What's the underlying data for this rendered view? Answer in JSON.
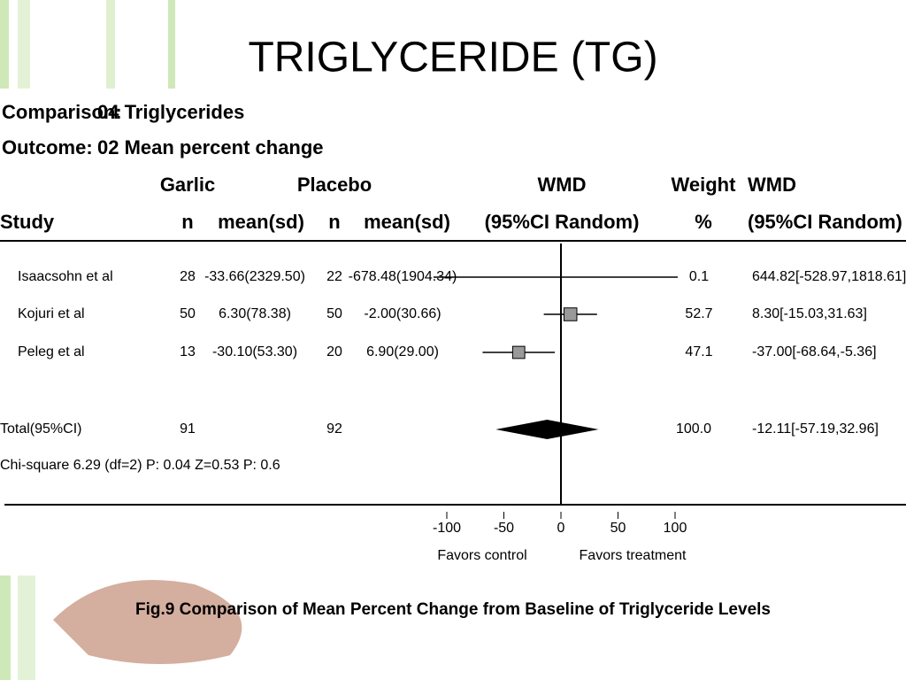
{
  "title": "TRIGLYCERIDE (TG)",
  "comparison": {
    "label": "Comparison:",
    "value": "04 Triglycerides"
  },
  "outcome": {
    "label": "Outcome:",
    "value": "02 Mean percent change"
  },
  "headers": {
    "top": [
      "Garlic",
      "Placebo",
      "WMD",
      "Weight",
      "WMD"
    ],
    "bottom": [
      "Study",
      "n",
      "mean(sd)",
      "n",
      "mean(sd)",
      "(95%CI Random)",
      "%",
      "(95%CI Random)"
    ]
  },
  "studies": [
    {
      "study": "Isaacsohn et al",
      "garlic_n": 28,
      "garlic_mean": "-33.66(2329.50)",
      "placebo_n": 22,
      "placebo_mean": "-678.48(1904.34)",
      "weight": 0.1,
      "wmd": 644.82,
      "ci": [
        -528.97,
        1818.61
      ],
      "wmd_label": "644.82[-528.97,1818.61]"
    },
    {
      "study": "Kojuri et al",
      "garlic_n": 50,
      "garlic_mean": "6.30(78.38)",
      "placebo_n": 50,
      "placebo_mean": "-2.00(30.66)",
      "weight": 52.7,
      "wmd": 8.3,
      "ci": [
        -15.03,
        31.63
      ],
      "wmd_label": "8.30[-15.03,31.63]"
    },
    {
      "study": "Peleg et al",
      "garlic_n": 13,
      "garlic_mean": "-30.10(53.30)",
      "placebo_n": 20,
      "placebo_mean": "6.90(29.00)",
      "weight": 47.1,
      "wmd": -37,
      "ci": [
        -68.64,
        -5.36
      ],
      "wmd_label": "-37.00[-68.64,-5.36]"
    }
  ],
  "total": {
    "study": "Total(95%CI)",
    "garlic_n": 91,
    "placebo_n": 92,
    "weight": 100,
    "weight_label": "100.0",
    "wmd": -12.11,
    "ci": [
      -57.19,
      32.96
    ],
    "wmd_label": "-12.11[-57.19,32.96]"
  },
  "heterogeneity": "Chi-square 6.29 (df=2) P: 0.04  Z=0.53 P: 0.6",
  "axis": {
    "xlim": [
      -100,
      100
    ],
    "xticks": [
      -100,
      -50,
      0,
      50,
      100
    ],
    "left_label": "Favors control",
    "right_label": "Favors treatment"
  },
  "caption": "Fig.9 Comparison of Mean Percent Change from Baseline of Triglyceride Levels"
}
